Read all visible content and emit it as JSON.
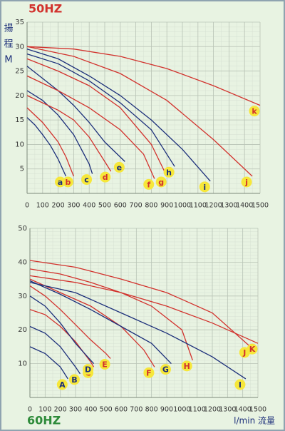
{
  "chart_data": [
    {
      "type": "line",
      "title": "50HZ",
      "y_label_lines": [
        "揚",
        "程",
        "M"
      ],
      "xlim": [
        0,
        1500
      ],
      "ylim": [
        0,
        35
      ],
      "xticks": [
        0,
        100,
        200,
        300,
        400,
        500,
        600,
        700,
        800,
        900,
        1000,
        1100,
        1200,
        1300,
        1400,
        1500
      ],
      "yticks": [
        5,
        10,
        15,
        20,
        25,
        30,
        35
      ],
      "grid": true,
      "series": [
        {
          "name": "a",
          "color": "#1c2f7a",
          "x": [
            0,
            50,
            100,
            150,
            200,
            250
          ],
          "values": [
            15.5,
            14,
            12,
            9.8,
            7,
            3.5
          ]
        },
        {
          "name": "b",
          "color": "#d2322d",
          "x": [
            0,
            100,
            200,
            250,
            300
          ],
          "values": [
            17.5,
            14.5,
            10.5,
            7.5,
            3.5
          ]
        },
        {
          "name": "c",
          "color": "#1c2f7a",
          "x": [
            0,
            100,
            200,
            300,
            400,
            420
          ],
          "values": [
            21,
            19,
            16,
            12,
            6,
            4
          ]
        },
        {
          "name": "d",
          "color": "#d2322d",
          "x": [
            0,
            100,
            200,
            300,
            400,
            500,
            540
          ],
          "values": [
            20,
            18.5,
            17,
            15,
            11.5,
            6.5,
            4.5
          ]
        },
        {
          "name": "e",
          "color": "#1c2f7a",
          "x": [
            0,
            100,
            200,
            300,
            400,
            500,
            630
          ],
          "values": [
            26,
            23.5,
            21,
            18,
            14.5,
            10.5,
            6.5
          ]
        },
        {
          "name": "f",
          "color": "#d2322d",
          "x": [
            0,
            200,
            400,
            600,
            750,
            820
          ],
          "values": [
            24,
            21,
            17.5,
            13,
            8,
            3
          ]
        },
        {
          "name": "g",
          "color": "#d2322d",
          "x": [
            0,
            200,
            400,
            600,
            800,
            900
          ],
          "values": [
            27.5,
            25,
            22,
            17.5,
            10,
            3.5
          ]
        },
        {
          "name": "h",
          "color": "#1c2f7a",
          "x": [
            0,
            200,
            400,
            600,
            800,
            950
          ],
          "values": [
            28.5,
            26.5,
            23,
            18.5,
            13,
            5.5
          ]
        },
        {
          "name": "i",
          "color": "#1c2f7a",
          "x": [
            0,
            200,
            400,
            600,
            800,
            1000,
            1180
          ],
          "values": [
            29.5,
            27.5,
            24,
            20,
            15,
            9,
            2.5
          ]
        },
        {
          "name": "j",
          "color": "#d2322d",
          "x": [
            0,
            300,
            600,
            900,
            1200,
            1450
          ],
          "values": [
            30,
            28,
            24.5,
            19,
            11,
            3.5
          ]
        },
        {
          "name": "k",
          "color": "#d2322d",
          "x": [
            0,
            300,
            600,
            900,
            1200,
            1500
          ],
          "values": [
            30,
            29.5,
            28,
            25.5,
            22,
            18
          ]
        }
      ]
    },
    {
      "type": "line",
      "title": "60HZ",
      "x_label": "l/min 流量",
      "xlim": [
        0,
        1500
      ],
      "ylim": [
        0,
        50
      ],
      "xticks": [
        0,
        100,
        200,
        300,
        400,
        500,
        600,
        700,
        800,
        900,
        1000,
        1100,
        1200,
        1300,
        1400,
        1500
      ],
      "yticks": [
        10,
        20,
        30,
        40,
        50
      ],
      "grid": true,
      "series": [
        {
          "name": "A",
          "color": "#1c2f7a",
          "x": [
            0,
            100,
            200,
            250
          ],
          "values": [
            15,
            13,
            9,
            5.5
          ]
        },
        {
          "name": "B",
          "color": "#1c2f7a",
          "x": [
            0,
            100,
            200,
            300,
            330
          ],
          "values": [
            21,
            19,
            15,
            9,
            7
          ]
        },
        {
          "name": "C",
          "color": "#d2322d",
          "x": [
            0,
            100,
            200,
            300,
            400,
            420
          ],
          "values": [
            26,
            24.5,
            21,
            16.5,
            10.5,
            9
          ]
        },
        {
          "name": "D",
          "color": "#1c2f7a",
          "x": [
            0,
            100,
            200,
            300,
            400,
            420
          ],
          "values": [
            30,
            27,
            22,
            16,
            11,
            10
          ]
        },
        {
          "name": "E",
          "color": "#d2322d",
          "x": [
            0,
            100,
            200,
            300,
            400,
            500,
            530
          ],
          "values": [
            33,
            30,
            26,
            21.5,
            17,
            13,
            11.5
          ]
        },
        {
          "name": "F",
          "color": "#d2322d",
          "x": [
            0,
            200,
            400,
            600,
            750,
            820
          ],
          "values": [
            35,
            31,
            27,
            21,
            14,
            9
          ]
        },
        {
          "name": "G",
          "color": "#1c2f7a",
          "x": [
            0,
            200,
            400,
            600,
            800,
            930
          ],
          "values": [
            34.5,
            30.5,
            26,
            21,
            16,
            10
          ]
        },
        {
          "name": "H",
          "color": "#d2322d",
          "x": [
            0,
            200,
            400,
            600,
            800,
            1000,
            1070
          ],
          "values": [
            38,
            36.5,
            34,
            31,
            27,
            20,
            11
          ]
        },
        {
          "name": "I",
          "color": "#1c2f7a",
          "x": [
            0,
            300,
            600,
            900,
            1200,
            1420
          ],
          "values": [
            34,
            31,
            25,
            19,
            12,
            5.5
          ]
        },
        {
          "name": "J",
          "color": "#d2322d",
          "x": [
            0,
            300,
            600,
            900,
            1200,
            1450
          ],
          "values": [
            40.5,
            38.5,
            35,
            31,
            25,
            15
          ]
        },
        {
          "name": "K",
          "color": "#d2322d",
          "x": [
            0,
            300,
            600,
            900,
            1200,
            1500
          ],
          "values": [
            36,
            34,
            31,
            27,
            22,
            16
          ]
        }
      ]
    }
  ]
}
